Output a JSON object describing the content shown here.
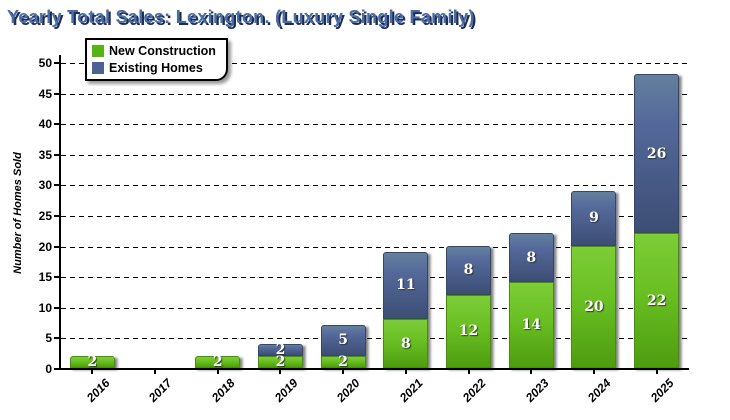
{
  "title": "Yearly Total Sales: Lexington. (Luxury Single Family)",
  "legend": {
    "items": [
      {
        "label": "New Construction",
        "color": "#55b414"
      },
      {
        "label": "Existing Homes",
        "color": "#4c6290"
      }
    ]
  },
  "chart_data": {
    "type": "bar",
    "stacked": true,
    "title": "Yearly Total Sales: Lexington. (Luxury Single Family)",
    "categories": [
      "2016",
      "2017",
      "2018",
      "2019",
      "2020",
      "2021",
      "2022",
      "2023",
      "2024",
      "2025"
    ],
    "series": [
      {
        "name": "New Construction",
        "values": [
          2,
          0,
          2,
          2,
          2,
          8,
          12,
          14,
          20,
          22
        ],
        "legend_color": "#55b414"
      },
      {
        "name": "Existing Homes",
        "values": [
          0,
          0,
          0,
          2,
          5,
          11,
          8,
          8,
          9,
          26
        ],
        "legend_color": "#4c6290"
      }
    ],
    "totals": [
      2,
      0,
      2,
      4,
      7,
      19,
      20,
      22,
      29,
      48
    ],
    "xlabel": "",
    "ylabel": "Number of Homes Sold",
    "ylim": [
      0,
      50
    ],
    "ytick_step": 5,
    "yticks": [
      0,
      5,
      10,
      15,
      20,
      25,
      30,
      35,
      40,
      45,
      50
    ],
    "grid": "horizontal dashed",
    "legend_position": "top-left",
    "value_labels": "white serif numbers centered inside each nonzero segment"
  },
  "colors": {
    "title_fill": "#4a6da8",
    "title_shadow": "#1e2c4f",
    "new_construction_top": "#7dcc38",
    "new_construction_bottom": "#4e9c10",
    "existing_homes_top": "#64809c",
    "existing_homes_bottom": "#3d4e74",
    "axis": "#000000",
    "background": "#ffffff"
  }
}
